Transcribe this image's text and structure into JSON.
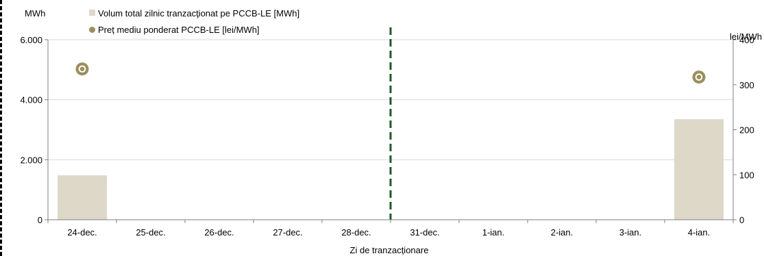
{
  "chart_data": {
    "type": "bar",
    "title": "",
    "xlabel": "Zi de tranzacționare",
    "ylabel_left": "MWh",
    "ylabel_right": "lei/MWh",
    "ylim_left": [
      0,
      6000
    ],
    "ylim_right": [
      0,
      400
    ],
    "yticks_left": [
      "0",
      "2.000",
      "4.000",
      "6.000"
    ],
    "yticks_left_values": [
      0,
      2000,
      4000,
      6000
    ],
    "yticks_right": [
      "0",
      "100",
      "200",
      "300",
      "400"
    ],
    "yticks_right_values": [
      0,
      100,
      200,
      300,
      400
    ],
    "grid": true,
    "legend_position": "top-left",
    "categories": [
      "24-dec.",
      "25-dec.",
      "26-dec.",
      "27-dec.",
      "28-dec.",
      "31-dec.",
      "1-ian.",
      "2-ian.",
      "3-ian.",
      "4-ian."
    ],
    "separator_after_category": "28-dec.",
    "series": [
      {
        "name": "Volum total zilnic tranzacţionat pe PCCB-LE [MWh]",
        "type": "bar",
        "axis": "left",
        "color": "#ddd8c8",
        "values": [
          1480,
          null,
          null,
          null,
          null,
          null,
          null,
          null,
          null,
          3350
        ]
      },
      {
        "name": "Preț mediu ponderat PCCB-LE [lei/MWh]",
        "type": "scatter",
        "axis": "right",
        "color": "#9c8f5e",
        "values": [
          335,
          null,
          null,
          null,
          null,
          null,
          null,
          null,
          null,
          317
        ]
      }
    ]
  }
}
